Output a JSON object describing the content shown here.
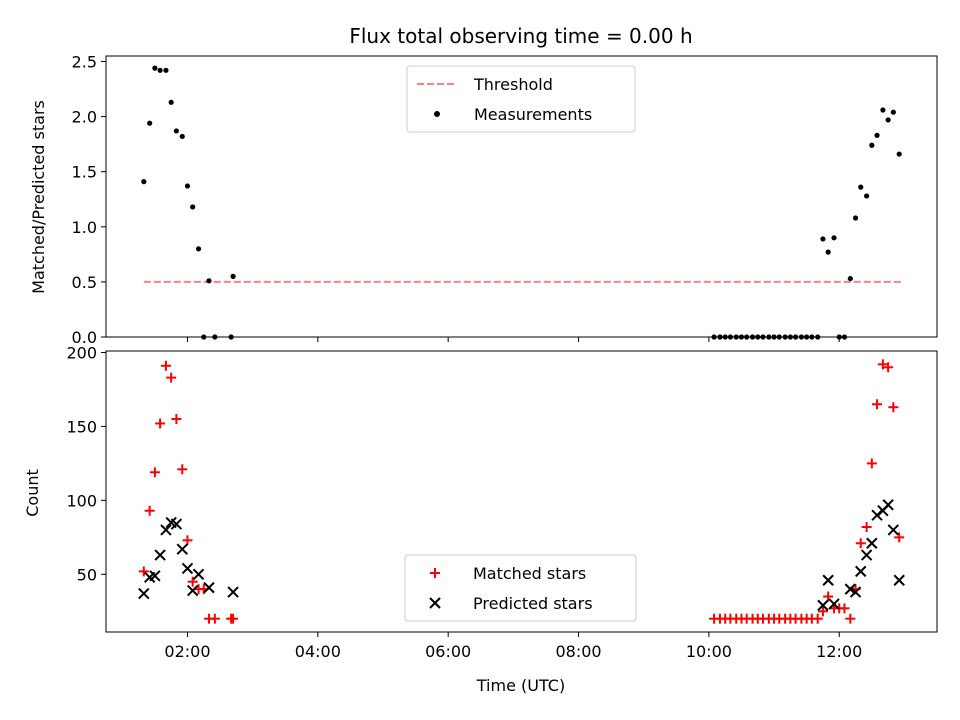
{
  "chart_data": [
    {
      "type": "scatter",
      "title": "Flux total observing time = 0.00 h",
      "ylabel": "Matched/Predicted stars",
      "xlabel": "",
      "x_unit": "hours UTC",
      "xlim": [
        0.75,
        13.5
      ],
      "ylim": [
        0,
        2.55
      ],
      "yticks": [
        0.0,
        0.5,
        1.0,
        1.5,
        2.0,
        2.5
      ],
      "ytick_labels": [
        "0.0",
        "0.5",
        "1.0",
        "1.5",
        "2.0",
        "2.5"
      ],
      "legend": {
        "placement": "upper center"
      },
      "threshold": {
        "name": "Threshold",
        "y": 0.5,
        "x_range": [
          1.33,
          12.95
        ],
        "color": "#ff8080",
        "style": "dashed"
      },
      "series": [
        {
          "name": "Measurements",
          "marker": "dot",
          "color": "#000000",
          "points": [
            [
              1.33,
              1.41
            ],
            [
              1.42,
              1.94
            ],
            [
              1.5,
              2.44
            ],
            [
              1.58,
              2.42
            ],
            [
              1.67,
              2.42
            ],
            [
              1.75,
              2.13
            ],
            [
              1.83,
              1.87
            ],
            [
              1.92,
              1.82
            ],
            [
              2.0,
              1.37
            ],
            [
              2.08,
              1.18
            ],
            [
              2.17,
              0.8
            ],
            [
              2.25,
              0.0
            ],
            [
              2.33,
              0.51
            ],
            [
              2.42,
              0.0
            ],
            [
              2.67,
              0.0
            ],
            [
              2.7,
              0.55
            ],
            [
              10.08,
              0.0
            ],
            [
              10.17,
              0.0
            ],
            [
              10.25,
              0.0
            ],
            [
              10.33,
              0.0
            ],
            [
              10.42,
              0.0
            ],
            [
              10.5,
              0.0
            ],
            [
              10.58,
              0.0
            ],
            [
              10.67,
              0.0
            ],
            [
              10.75,
              0.0
            ],
            [
              10.83,
              0.0
            ],
            [
              10.92,
              0.0
            ],
            [
              11.0,
              0.0
            ],
            [
              11.08,
              0.0
            ],
            [
              11.17,
              0.0
            ],
            [
              11.25,
              0.0
            ],
            [
              11.33,
              0.0
            ],
            [
              11.42,
              0.0
            ],
            [
              11.5,
              0.0
            ],
            [
              11.58,
              0.0
            ],
            [
              11.67,
              0.0
            ],
            [
              11.75,
              0.89
            ],
            [
              11.83,
              0.77
            ],
            [
              11.92,
              0.9
            ],
            [
              12.0,
              0.0
            ],
            [
              12.08,
              0.0
            ],
            [
              12.17,
              0.53
            ],
            [
              12.25,
              1.08
            ],
            [
              12.33,
              1.36
            ],
            [
              12.42,
              1.28
            ],
            [
              12.5,
              1.74
            ],
            [
              12.58,
              1.83
            ],
            [
              12.67,
              2.06
            ],
            [
              12.75,
              1.97
            ],
            [
              12.83,
              2.04
            ],
            [
              12.92,
              1.66
            ]
          ]
        }
      ]
    },
    {
      "type": "scatter",
      "title": "",
      "ylabel": "Count",
      "xlabel": "Time (UTC)",
      "x_unit": "hours UTC",
      "xlim": [
        0.75,
        13.5
      ],
      "ylim": [
        11,
        201
      ],
      "yticks": [
        50,
        100,
        150,
        200
      ],
      "ytick_labels": [
        "50",
        "100",
        "150",
        "200"
      ],
      "xticks": [
        2,
        4,
        6,
        8,
        10,
        12
      ],
      "xtick_labels": [
        "02:00",
        "04:00",
        "06:00",
        "08:00",
        "10:00",
        "12:00"
      ],
      "legend": {
        "placement": "lower center"
      },
      "series": [
        {
          "name": "Matched stars",
          "marker": "plus",
          "color": "#ff0000",
          "points": [
            [
              1.33,
              52
            ],
            [
              1.42,
              93
            ],
            [
              1.5,
              119
            ],
            [
              1.58,
              152
            ],
            [
              1.67,
              191
            ],
            [
              1.75,
              183
            ],
            [
              1.83,
              155
            ],
            [
              1.92,
              121
            ],
            [
              2.0,
              73
            ],
            [
              2.08,
              45
            ],
            [
              2.17,
              40
            ],
            [
              2.25,
              40
            ],
            [
              2.33,
              20
            ],
            [
              2.42,
              20
            ],
            [
              2.67,
              20
            ],
            [
              2.7,
              20
            ],
            [
              10.08,
              20
            ],
            [
              10.17,
              20
            ],
            [
              10.25,
              20
            ],
            [
              10.33,
              20
            ],
            [
              10.42,
              20
            ],
            [
              10.5,
              20
            ],
            [
              10.58,
              20
            ],
            [
              10.67,
              20
            ],
            [
              10.75,
              20
            ],
            [
              10.83,
              20
            ],
            [
              10.92,
              20
            ],
            [
              11.0,
              20
            ],
            [
              11.08,
              20
            ],
            [
              11.17,
              20
            ],
            [
              11.25,
              20
            ],
            [
              11.33,
              20
            ],
            [
              11.42,
              20
            ],
            [
              11.5,
              20
            ],
            [
              11.58,
              20
            ],
            [
              11.67,
              20
            ],
            [
              11.75,
              25
            ],
            [
              11.83,
              35
            ],
            [
              11.92,
              27
            ],
            [
              12.0,
              27
            ],
            [
              12.08,
              27
            ],
            [
              12.17,
              20
            ],
            [
              12.25,
              40
            ],
            [
              12.33,
              71
            ],
            [
              12.42,
              82
            ],
            [
              12.5,
              125
            ],
            [
              12.58,
              165
            ],
            [
              12.67,
              192
            ],
            [
              12.75,
              190
            ],
            [
              12.83,
              163
            ],
            [
              12.92,
              75
            ]
          ]
        },
        {
          "name": "Predicted stars",
          "marker": "x",
          "color": "#000000",
          "points": [
            [
              1.33,
              37
            ],
            [
              1.42,
              48
            ],
            [
              1.5,
              49
            ],
            [
              1.58,
              63
            ],
            [
              1.67,
              80
            ],
            [
              1.75,
              85
            ],
            [
              1.83,
              84
            ],
            [
              1.92,
              67
            ],
            [
              2.0,
              54
            ],
            [
              2.08,
              39
            ],
            [
              2.17,
              50
            ],
            [
              2.33,
              41
            ],
            [
              2.7,
              38
            ],
            [
              11.75,
              29
            ],
            [
              11.83,
              46
            ],
            [
              11.92,
              30
            ],
            [
              12.17,
              40
            ],
            [
              12.25,
              38
            ],
            [
              12.33,
              52
            ],
            [
              12.42,
              63
            ],
            [
              12.5,
              71
            ],
            [
              12.58,
              90
            ],
            [
              12.67,
              93
            ],
            [
              12.75,
              97
            ],
            [
              12.83,
              80
            ],
            [
              12.92,
              46
            ]
          ]
        }
      ]
    }
  ]
}
